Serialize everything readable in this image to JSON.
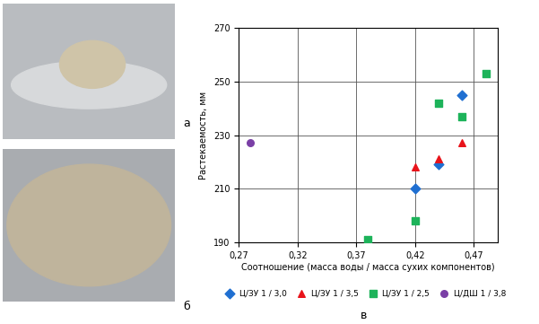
{
  "panel_labels": [
    "а",
    "б",
    "в"
  ],
  "chart_data": {
    "type": "scatter",
    "x_label": "Соотношение (масса воды / масса сухих компонентов)",
    "y_label": "Растекаемость, мм",
    "xlim": [
      0.27,
      0.49
    ],
    "xticks": [
      {
        "value": 0.27,
        "label": "0,27"
      },
      {
        "value": 0.32,
        "label": "0,32"
      },
      {
        "value": 0.37,
        "label": "0,37"
      },
      {
        "value": 0.42,
        "label": "0,42"
      },
      {
        "value": 0.47,
        "label": "0,47"
      }
    ],
    "ylim": [
      190,
      270
    ],
    "yticks": [
      190,
      210,
      230,
      250,
      270
    ],
    "grid": true,
    "legend": "bottom",
    "series": [
      {
        "name": "Ц/ЗУ 1 / 3,0",
        "color": "#1f6fd1",
        "marker": "diamond",
        "x": [
          0.42,
          0.44,
          0.46
        ],
        "values": [
          210,
          219,
          245
        ]
      },
      {
        "name": "Ц/ЗУ 1 / 3,5",
        "color": "#e8141b",
        "marker": "triangle",
        "x": [
          0.42,
          0.44,
          0.46
        ],
        "values": [
          218,
          221,
          227
        ]
      },
      {
        "name": "Ц/ЗУ 1 / 2,5",
        "color": "#1db35a",
        "marker": "square",
        "x": [
          0.38,
          0.42,
          0.44,
          0.46,
          0.48
        ],
        "values": [
          191,
          198,
          242,
          237,
          253
        ]
      },
      {
        "name": "Ц/ДШ 1 / 3,8",
        "color": "#7a3fa6",
        "marker": "circle",
        "x": [
          0.28
        ],
        "values": [
          227
        ]
      }
    ]
  }
}
